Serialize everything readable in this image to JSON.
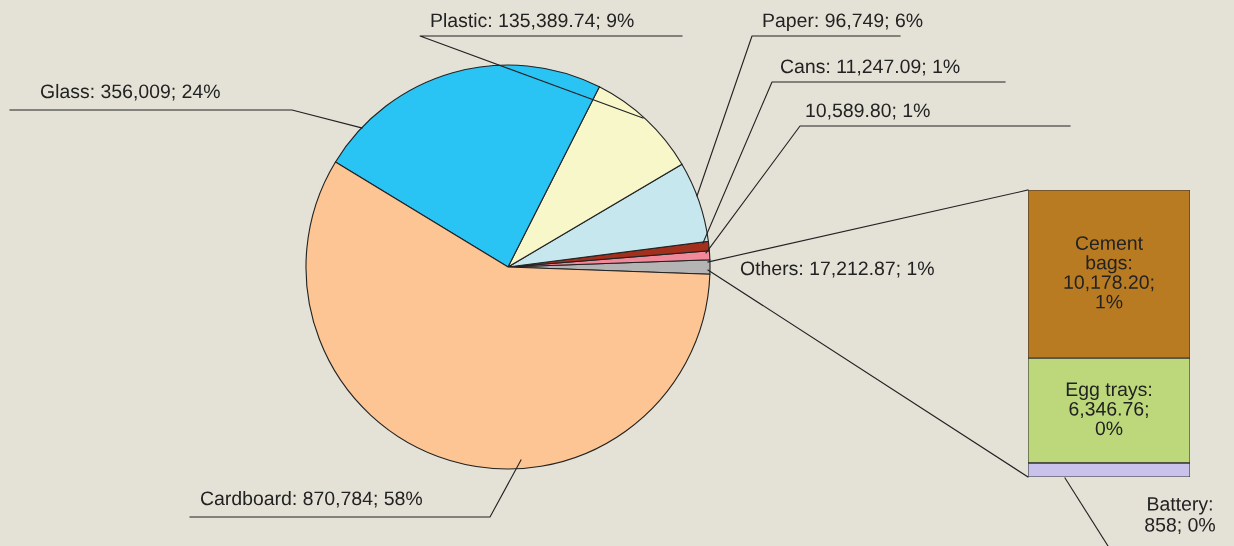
{
  "chart_data": [
    {
      "type": "pie",
      "categories": [
        "Others",
        null,
        "Cans",
        "Paper",
        "Plastic",
        "Glass",
        "Cardboard"
      ],
      "values": [
        17212.87,
        10589.8,
        11247.09,
        96749,
        135389.74,
        356009,
        870784
      ],
      "value_labels": [
        "17,212.87; 1%",
        "10,589.80; 1%",
        "11,247.09; 1%",
        "96,749; 6%",
        "135,389.74; 9%",
        "356,009; 24%",
        "870,784; 58%"
      ],
      "colors": [
        "#b4b4b4",
        "#f2899a",
        "#a3301c",
        "#c6e7ee",
        "#f8f7ca",
        "#29c4f4",
        "#fdc594"
      ]
    },
    {
      "type": "bar",
      "stacked": true,
      "categories": [
        null
      ],
      "series": [
        {
          "color": "#c9c2ea",
          "values": [
            858
          ],
          "value_labels": [
            "Battery: 858; 0%"
          ]
        },
        {
          "color": "#bdd87a",
          "values": [
            6346.76
          ],
          "value_labels": [
            "Egg trays: 6,346.76; 0%"
          ]
        },
        {
          "color": "#b87b22",
          "values": [
            10178.2
          ],
          "value_labels": [
            "Cement bags: 10,178.20; 1%"
          ]
        }
      ]
    }
  ]
}
